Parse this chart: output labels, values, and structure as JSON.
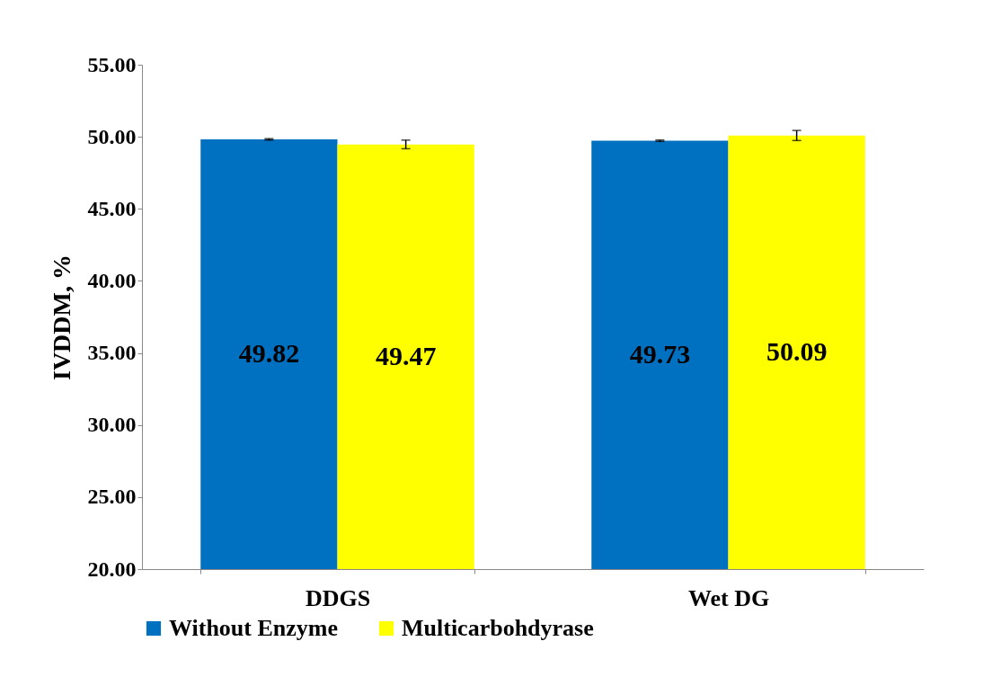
{
  "chart_data": {
    "type": "bar",
    "ylabel": "IVDDM, %",
    "categories": [
      "DDGS",
      "Wet DG"
    ],
    "series": [
      {
        "name": "Without Enzyme",
        "color": "#0070c0",
        "values": [
          49.82,
          49.73
        ],
        "errors": [
          0.05,
          0.05
        ]
      },
      {
        "name": "Multicarbohdyrase",
        "color": "#ffff00",
        "values": [
          49.47,
          50.09
        ],
        "errors": [
          0.3,
          0.35
        ]
      }
    ],
    "ylim": [
      20,
      55
    ],
    "yticks": [
      {
        "value": 20,
        "label": "20.00"
      },
      {
        "value": 25,
        "label": "25.00"
      },
      {
        "value": 30,
        "label": "30.00"
      },
      {
        "value": 35,
        "label": "35.00"
      },
      {
        "value": 40,
        "label": "40.00"
      },
      {
        "value": 45,
        "label": "45.00"
      },
      {
        "value": 50,
        "label": "50.00"
      },
      {
        "value": 55,
        "label": "55.00"
      }
    ],
    "data_labels": true,
    "grid": false,
    "legend": "bottom"
  }
}
